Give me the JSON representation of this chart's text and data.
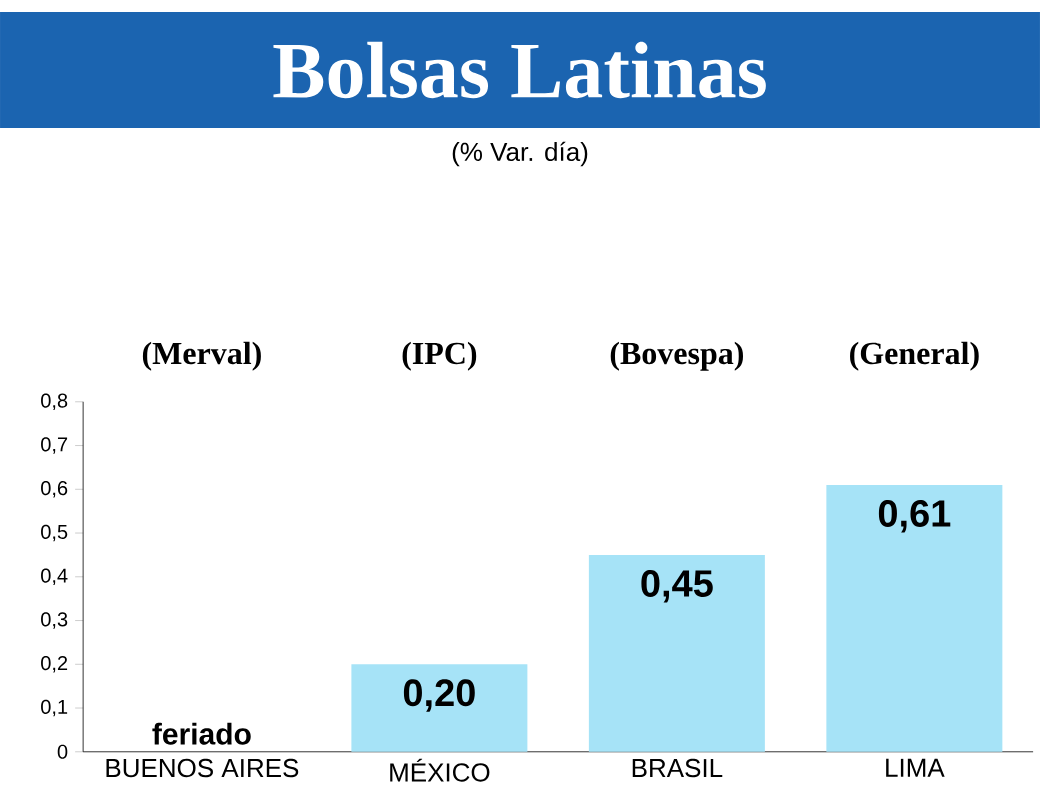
{
  "chart_data": {
    "type": "bar",
    "title": "Bolsas Latinas",
    "subtitle": "(% Var. día)",
    "categories": [
      "BUENOS AIRES",
      "MÉXICO",
      "BRASIL",
      "LIMA"
    ],
    "values": [
      null,
      0.2,
      0.45,
      0.61
    ],
    "value_labels": [
      "feriado",
      "0,20",
      "0,45",
      "0,61"
    ],
    "color": "#a6e3f7",
    "annotations": [
      "(Merval)",
      "(IPC)",
      "(Bovespa)",
      "(General)"
    ],
    "ylim": [
      0,
      0.8
    ],
    "yticks": [
      0,
      {
        "value": 0.1,
        "label": "0,1"
      },
      {
        "value": 0.2,
        "label": "0,2"
      },
      {
        "value": 0.3,
        "label": "0,3"
      },
      {
        "value": 0.4,
        "label": "0,4"
      },
      {
        "value": 0.5,
        "label": "0,5"
      },
      {
        "value": 0.6,
        "label": "0,6"
      },
      {
        "value": 0.7,
        "label": "0,7"
      },
      {
        "value": 0.8,
        "label": "0,8"
      }
    ],
    "grid": false
  }
}
